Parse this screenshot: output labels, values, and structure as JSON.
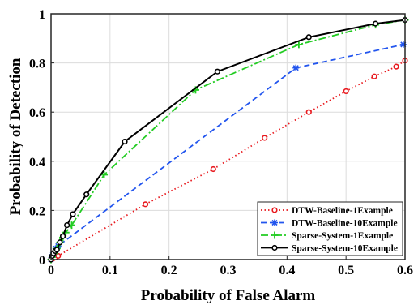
{
  "chart_data": {
    "type": "line",
    "title": "",
    "xlabel": "Probability of False Alarm",
    "ylabel": "Probability of Detection",
    "xlim": [
      0,
      0.6
    ],
    "ylim": [
      0,
      1
    ],
    "xticks": [
      "0",
      "0.1",
      "0.2",
      "0.3",
      "0.4",
      "0.5",
      "0.6"
    ],
    "yticks": [
      "0",
      "0.2",
      "0.4",
      "0.6",
      "0.8",
      "1"
    ],
    "grid": true,
    "legend_position": "bottom-right",
    "series": [
      {
        "name": "DTW-Baseline-1Example",
        "color": "#e8191e",
        "line_style": "dotted",
        "marker": "circle",
        "x": [
          0,
          0.003,
          0.007,
          0.012,
          0.16,
          0.275,
          0.362,
          0.437,
          0.5,
          0.548,
          0.585,
          0.6
        ],
        "y": [
          0,
          0.004,
          0.008,
          0.015,
          0.225,
          0.368,
          0.495,
          0.6,
          0.685,
          0.745,
          0.785,
          0.81
        ]
      },
      {
        "name": "DTW-Baseline-10Example",
        "color": "#2255ee",
        "line_style": "dashed",
        "marker": "asterisk",
        "x": [
          0,
          0.003,
          0.008,
          0.012,
          0.415,
          0.597
        ],
        "y": [
          0,
          0.02,
          0.045,
          0.055,
          0.78,
          0.875
        ]
      },
      {
        "name": "Sparse-System-1Example",
        "color": "#22cc22",
        "line_style": "dashdot",
        "marker": "plus",
        "x": [
          0,
          0.002,
          0.005,
          0.01,
          0.015,
          0.02,
          0.025,
          0.035,
          0.09,
          0.245,
          0.42,
          0.55,
          0.6
        ],
        "y": [
          0,
          0.01,
          0.025,
          0.045,
          0.07,
          0.09,
          0.11,
          0.14,
          0.345,
          0.69,
          0.875,
          0.955,
          0.975
        ]
      },
      {
        "name": "Sparse-System-10Example",
        "color": "#000000",
        "line_style": "solid",
        "marker": "circle",
        "x": [
          0,
          0.002,
          0.004,
          0.007,
          0.01,
          0.015,
          0.02,
          0.027,
          0.037,
          0.06,
          0.125,
          0.282,
          0.437,
          0.55,
          0.6
        ],
        "y": [
          0,
          0.015,
          0.025,
          0.035,
          0.04,
          0.07,
          0.095,
          0.14,
          0.185,
          0.265,
          0.48,
          0.765,
          0.905,
          0.96,
          0.975
        ]
      }
    ]
  }
}
